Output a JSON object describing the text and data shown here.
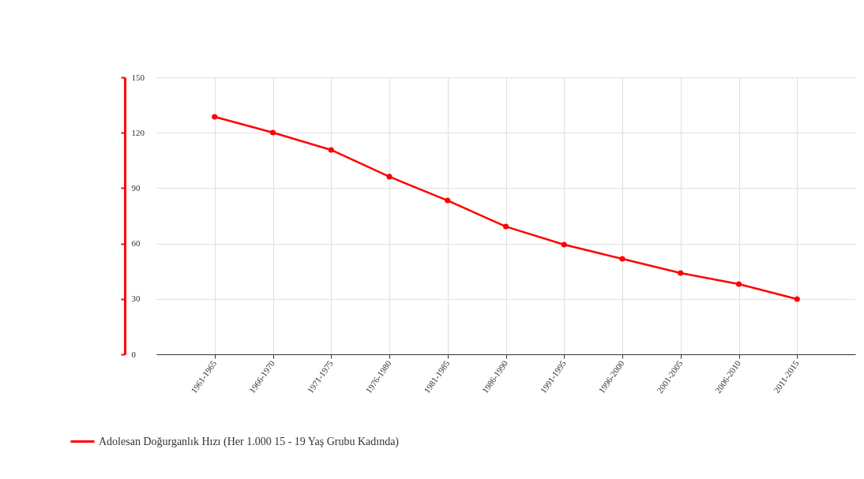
{
  "chart_data": {
    "type": "line",
    "categories": [
      "1961-1965",
      "1966-1970",
      "1971-1975",
      "1976-1980",
      "1981-1985",
      "1986-1990",
      "1991-1995",
      "1996-2000",
      "2001-2005",
      "2006-2010",
      "2011-2015"
    ],
    "series": [
      {
        "name": "Adolesan Doğurganlık Hızı (Her 1.000 15 - 19 Yaş Grubu Kadında)",
        "color": "#ff0000",
        "values": [
          128.6,
          120.1,
          110.7,
          96.2,
          83.3,
          69.2,
          59.4,
          51.7,
          44.0,
          38.0,
          29.9
        ]
      }
    ],
    "ylim": [
      0,
      150
    ],
    "yticks": [
      0,
      30,
      60,
      90,
      120,
      150
    ],
    "grid": true,
    "legend": "bottom left",
    "marker": "circle",
    "line_style": "solid"
  }
}
